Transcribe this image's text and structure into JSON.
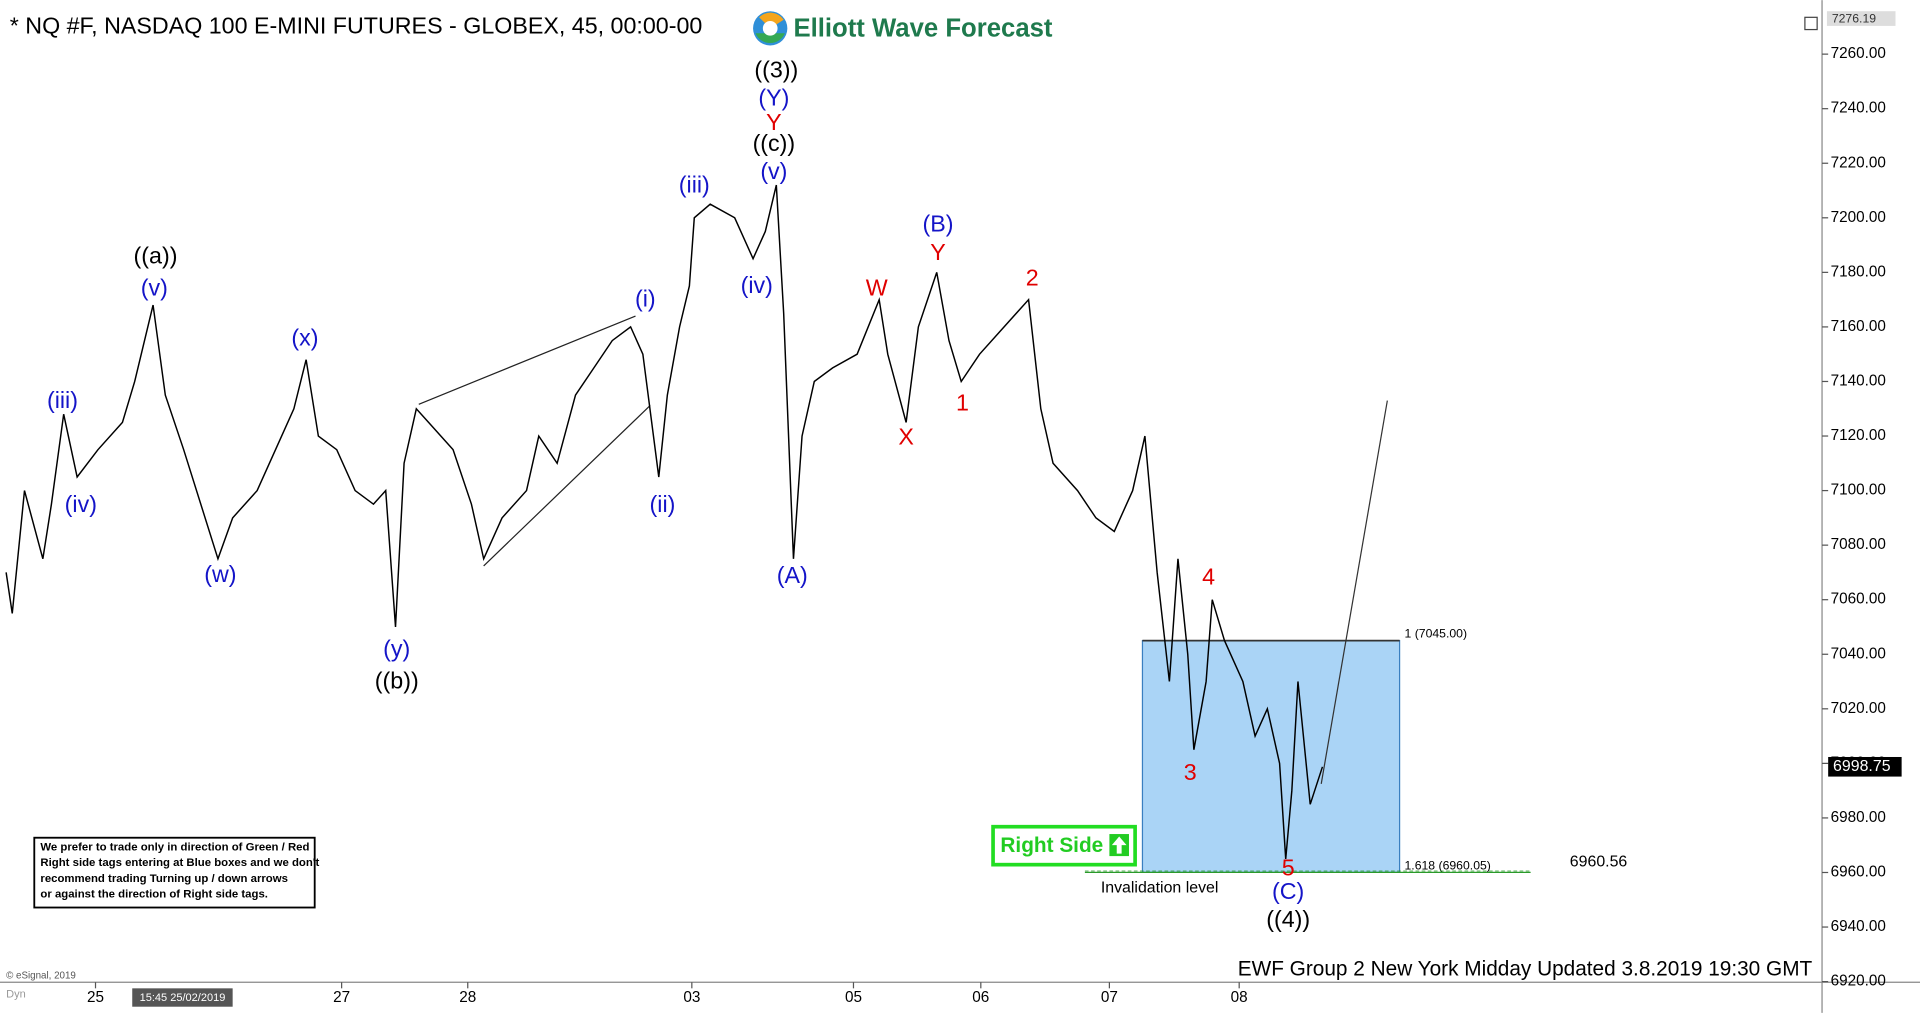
{
  "chart_data": {
    "type": "line",
    "title": "* NQ #F, NASDAQ 100 E-MINI FUTURES - GLOBEX, 45, 00:00-00",
    "logo": "Elliott Wave Forecast",
    "footer": "EWF Group 2 New York Midday Updated 3.8.2019 19:30 GMT",
    "copyright": "© eSignal, 2019",
    "dyn": "Dyn",
    "crosshair_label": "15:45 25/02/2019",
    "color": "#000000",
    "xlim": [
      0,
      148.8
    ],
    "ylim": [
      6920,
      7276.19
    ],
    "xticks": [
      {
        "value": 7.8,
        "label": "25"
      },
      {
        "value": 27.9,
        "label": "27"
      },
      {
        "value": 38.2,
        "label": "28"
      },
      {
        "value": 56.5,
        "label": "03"
      },
      {
        "value": 69.7,
        "label": "05"
      },
      {
        "value": 80.1,
        "label": "06"
      },
      {
        "value": 90.6,
        "label": "07"
      },
      {
        "value": 101.2,
        "label": "08"
      }
    ],
    "yticks": [
      {
        "value": 6920,
        "label": "6920.00"
      },
      {
        "value": 6940,
        "label": "6940.00"
      },
      {
        "value": 6960,
        "label": "6960.00"
      },
      {
        "value": 6980,
        "label": "6980.00"
      },
      {
        "value": 7000,
        "label": "7000.00"
      },
      {
        "value": 7020,
        "label": "7020.00"
      },
      {
        "value": 7040,
        "label": "7040.00"
      },
      {
        "value": 7060,
        "label": "7060.00"
      },
      {
        "value": 7080,
        "label": "7080.00"
      },
      {
        "value": 7100,
        "label": "7100.00"
      },
      {
        "value": 7120,
        "label": "7120.00"
      },
      {
        "value": 7140,
        "label": "7140.00"
      },
      {
        "value": 7160,
        "label": "7160.00"
      },
      {
        "value": 7180,
        "label": "7180.00"
      },
      {
        "value": 7200,
        "label": "7200.00"
      },
      {
        "value": 7220,
        "label": "7220.00"
      },
      {
        "value": 7240,
        "label": "7240.00"
      },
      {
        "value": 7260,
        "label": "7260.00"
      }
    ],
    "x": [
      0.5,
      1,
      2,
      3.5,
      4.2,
      5.2,
      6.3,
      8,
      10,
      11,
      12.5,
      13.5,
      15,
      17.8,
      19,
      21,
      23,
      24,
      25,
      26,
      27.5,
      29,
      30.5,
      31.5,
      32.3,
      33,
      34,
      35,
      37,
      38.5,
      39.5,
      41,
      43,
      44,
      45.5,
      47,
      48.5,
      50,
      51.5,
      52.5,
      53.8,
      54.5,
      55.5,
      56.3,
      56.7,
      58,
      60,
      61.5,
      62.5,
      63.4,
      64,
      64.8,
      65.5,
      66.5,
      68,
      70,
      71.8,
      72.5,
      74,
      75,
      76.5,
      77.5,
      78.5,
      80,
      82,
      84,
      85,
      86,
      88,
      89.5,
      91,
      92.5,
      93.5,
      94.5,
      95.5,
      96.2,
      97,
      97.5,
      98.5,
      99,
      100,
      101.5,
      102.5,
      103.5,
      104.5,
      105,
      105.5,
      106,
      107,
      108
    ],
    "values": [
      7070,
      7055,
      7100,
      7075,
      7095,
      7128,
      7105,
      7115,
      7125,
      7140,
      7168,
      7135,
      7115,
      7075,
      7090,
      7100,
      7120,
      7130,
      7148,
      7120,
      7115,
      7100,
      7095,
      7100,
      7050,
      7110,
      7130,
      7125,
      7115,
      7095,
      7075,
      7090,
      7100,
      7120,
      7110,
      7135,
      7145,
      7155,
      7160,
      7150,
      7105,
      7135,
      7160,
      7175,
      7200,
      7205,
      7200,
      7185,
      7195,
      7212,
      7165,
      7075,
      7120,
      7140,
      7145,
      7150,
      7170,
      7150,
      7125,
      7160,
      7180,
      7155,
      7140,
      7150,
      7160,
      7170,
      7130,
      7110,
      7100,
      7090,
      7085,
      7100,
      7120,
      7070,
      7030,
      7075,
      7040,
      7005,
      7030,
      7060,
      7045,
      7030,
      7010,
      7020,
      7000,
      6965,
      6990,
      7030,
      6985,
      6998.75
    ],
    "top_price": 7276.19,
    "last_price": 6998.75,
    "fib_zone": {
      "top": 7045,
      "bottom": 6960.05,
      "top_label": "1 (7045.00)",
      "bottom_label": "1.618 (6960.05)",
      "color": "#aad4f6"
    },
    "invalidation": {
      "value": 6960.56,
      "text": "Invalidation level"
    },
    "right_side_tag": "Right Side",
    "disclaimer": [
      "We prefer to trade only in direction of Green / Red",
      "Right side tags entering at Blue boxes and we don't",
      "recommend trading Turning up / down arrows",
      "or against the direction of Right side tags."
    ],
    "annotations": [
      {
        "text": "((a))",
        "color": "#000000"
      },
      {
        "text": "(v)",
        "color": "#1414c8"
      },
      {
        "text": "(iii)",
        "color": "#1414c8"
      },
      {
        "text": "(iv)",
        "color": "#1414c8"
      },
      {
        "text": "(w)",
        "color": "#1414c8"
      },
      {
        "text": "(x)",
        "color": "#1414c8"
      },
      {
        "text": "(y)",
        "color": "#1414c8"
      },
      {
        "text": "((b))",
        "color": "#000000"
      },
      {
        "text": "(i)",
        "color": "#1414c8"
      },
      {
        "text": "(ii)",
        "color": "#1414c8"
      },
      {
        "text": "(iii)",
        "color": "#1414c8"
      },
      {
        "text": "(iv)",
        "color": "#1414c8"
      },
      {
        "text": "(v)",
        "color": "#1414c8"
      },
      {
        "text": "((c))",
        "color": "#000000"
      },
      {
        "text": "Y",
        "color": "#e00000"
      },
      {
        "text": "(Y)",
        "color": "#1414c8"
      },
      {
        "text": "((3))",
        "color": "#000000"
      },
      {
        "text": "(A)",
        "color": "#1414c8"
      },
      {
        "text": "W",
        "color": "#e00000"
      },
      {
        "text": "X",
        "color": "#e00000"
      },
      {
        "text": "(B)",
        "color": "#1414c8"
      },
      {
        "text": "Y",
        "color": "#e00000"
      },
      {
        "text": "1",
        "color": "#e00000"
      },
      {
        "text": "2",
        "color": "#e00000"
      },
      {
        "text": "3",
        "color": "#e00000"
      },
      {
        "text": "4",
        "color": "#e00000"
      },
      {
        "text": "5",
        "color": "#e00000"
      },
      {
        "text": "(C)",
        "color": "#1414c8"
      },
      {
        "text": "((4))",
        "color": "#000000"
      }
    ]
  }
}
